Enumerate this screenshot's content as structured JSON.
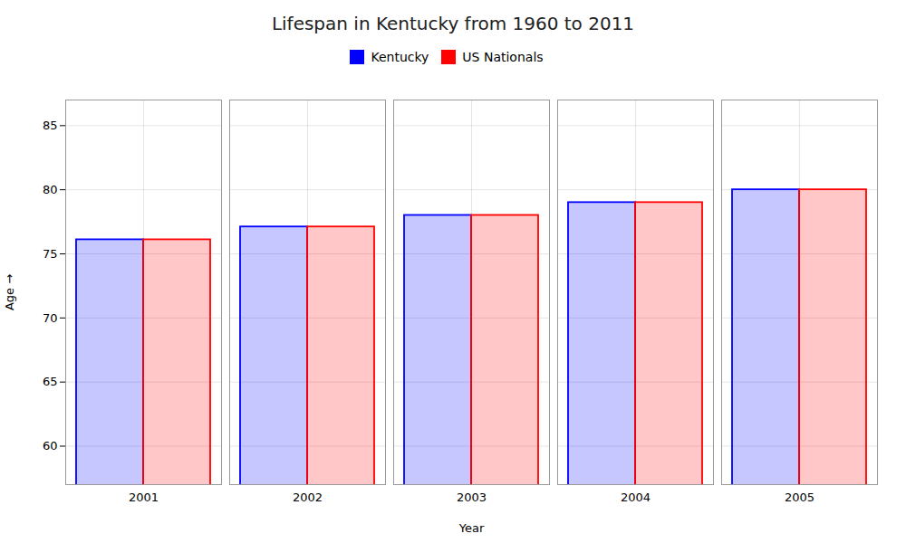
{
  "chart_data": {
    "type": "bar",
    "title": "Lifespan in Kentucky from 1960 to 2011",
    "x_label": "Year",
    "y_label": "Age",
    "categories": [
      2001,
      2002,
      2003,
      2004,
      2005
    ],
    "series": [
      {
        "name": "Kentucky",
        "color": "#0000ff",
        "values": [
          76.1,
          77.1,
          78.0,
          79.0,
          80.0
        ]
      },
      {
        "name": "US Nationals",
        "color": "#ff0000",
        "values": [
          76.1,
          77.1,
          78.0,
          79.0,
          80.0
        ]
      }
    ],
    "ylim": [
      57,
      87
    ],
    "yticks": [
      60,
      65,
      70,
      75,
      80,
      85
    ],
    "grid": true,
    "legend": "upper center"
  }
}
